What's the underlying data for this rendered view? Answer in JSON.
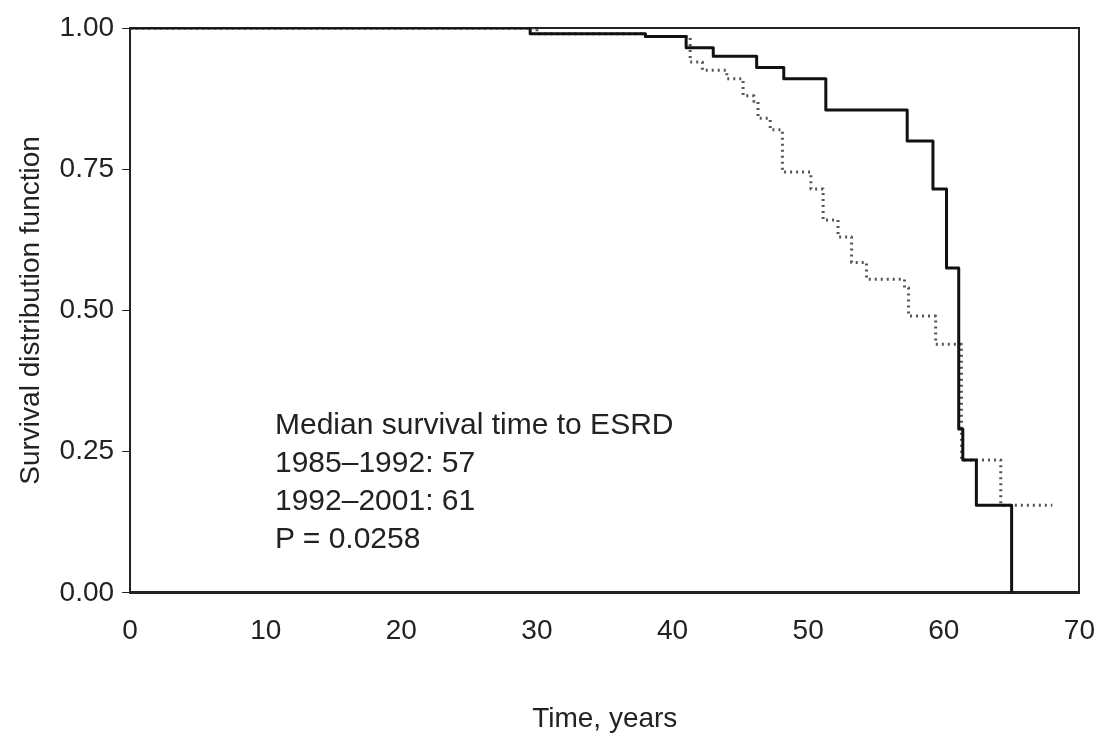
{
  "chart_data": {
    "type": "step",
    "xlabel": "Time, years",
    "ylabel": "Survival distribution function",
    "xlim": [
      0,
      70
    ],
    "xticks": [
      0,
      10,
      20,
      30,
      40,
      50,
      60,
      70
    ],
    "ylim": [
      0,
      1
    ],
    "yticks": [
      {
        "value": 0,
        "label": "0.00"
      },
      {
        "value": 0.25,
        "label": "0.25"
      },
      {
        "value": 0.5,
        "label": "0.50"
      },
      {
        "value": 0.75,
        "label": "0.75"
      },
      {
        "value": 1,
        "label": "1.00"
      }
    ],
    "grid": false,
    "legend": false,
    "marker": "none",
    "series": [
      {
        "color": "#111111",
        "line_style": "solid",
        "x": [
          0,
          29.5,
          38,
          41,
          43,
          46.2,
          48.2,
          51.3,
          57.3,
          59.2,
          60.2,
          61.1,
          61.4,
          62.4,
          65
        ],
        "values": [
          1,
          0.99,
          0.985,
          0.965,
          0.95,
          0.93,
          0.91,
          0.855,
          0.8,
          0.715,
          0.575,
          0.29,
          0.235,
          0.155,
          0
        ]
      },
      {
        "color": "#555555",
        "line_style": "dotted",
        "x": [
          0,
          30,
          38,
          41.3,
          42.2,
          44,
          45.2,
          46,
          46.3,
          47.2,
          48.1,
          50.2,
          51.1,
          52.2,
          53.2,
          54.3,
          57.1,
          57.4,
          59.4,
          61.3,
          64.2,
          68
        ],
        "values": [
          1,
          0.99,
          0.985,
          0.94,
          0.925,
          0.91,
          0.88,
          0.87,
          0.84,
          0.82,
          0.745,
          0.715,
          0.66,
          0.63,
          0.585,
          0.555,
          0.54,
          0.49,
          0.44,
          0.235,
          0.155,
          0.155
        ]
      }
    ],
    "annotations": [
      "Median survival time to ESRD",
      "1985–1992: 57",
      "1992–2001: 61",
      "P = 0.0258"
    ]
  }
}
